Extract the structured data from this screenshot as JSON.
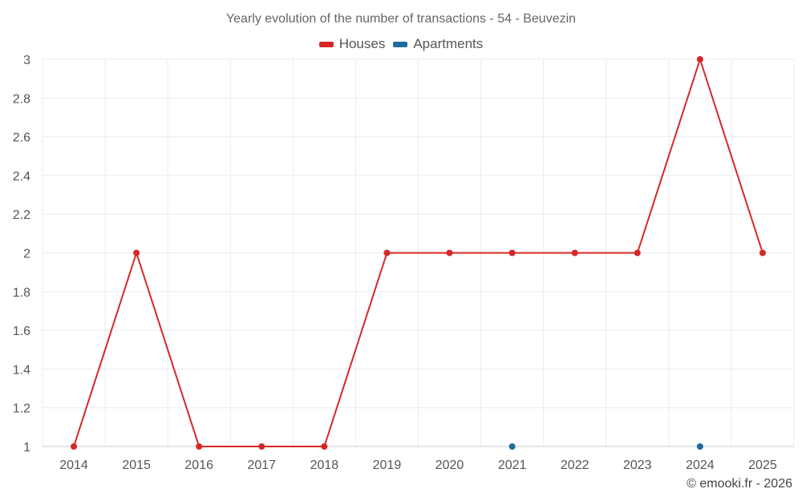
{
  "chart_data": {
    "type": "line",
    "title": "Yearly evolution of the number of transactions - 54 - Beuvezin",
    "categories": [
      "2014",
      "2015",
      "2016",
      "2017",
      "2018",
      "2019",
      "2020",
      "2021",
      "2022",
      "2023",
      "2024",
      "2025"
    ],
    "series": [
      {
        "name": "Houses",
        "color": "#d62728",
        "values": [
          1,
          2,
          1,
          1,
          1,
          2,
          2,
          2,
          2,
          2,
          3,
          2
        ]
      },
      {
        "name": "Apartments",
        "color": "#1f6b9a",
        "values": [
          null,
          null,
          null,
          null,
          null,
          null,
          null,
          1,
          null,
          null,
          1,
          null
        ]
      }
    ],
    "ylim": [
      1,
      3
    ],
    "yticks": [
      "1",
      "1.2",
      "1.4",
      "1.6",
      "1.8",
      "2",
      "2.2",
      "2.4",
      "2.6",
      "2.8",
      "3"
    ],
    "grid": true,
    "legend": "top-center"
  },
  "footer": {
    "copyright": "© emooki.fr - 2026"
  }
}
